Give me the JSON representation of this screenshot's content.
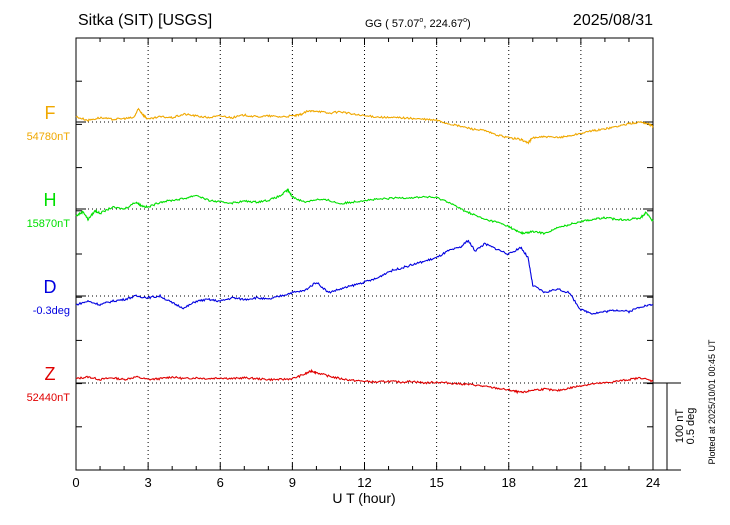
{
  "header": {
    "station": "Sitka (SIT)  [USGS]",
    "coord_prefix": "GG ( ",
    "coord_lat": "57.07",
    "coord_lon": "224.67",
    "coord_suffix": ")",
    "degree_mark": "o",
    "date": "2025/08/31"
  },
  "scale": {
    "nt_label": "100 nT",
    "deg_label": "0.5 deg"
  },
  "plotted_note": "Plotted at 2025/10/01 00:45 UT",
  "chart_data": {
    "type": "line",
    "title": "Sitka (SIT)  [USGS]",
    "xlabel": "U T (hour)",
    "ylabel": "",
    "xlim": [
      0,
      24
    ],
    "xticks": [
      "0",
      "3",
      "6",
      "9",
      "12",
      "15",
      "18",
      "21",
      "24"
    ],
    "grid": true,
    "legend": "left",
    "nt_per_division": 100,
    "deg_per_division": 0.5,
    "series": [
      {
        "name": "F",
        "baseline": "54780nT",
        "color": "#f0a800",
        "unit": "nT",
        "offset": 3,
        "points": [
          [
            0,
            6
          ],
          [
            0.5,
            2
          ],
          [
            1,
            5
          ],
          [
            1.5,
            3
          ],
          [
            2,
            4
          ],
          [
            2.4,
            5
          ],
          [
            2.6,
            15
          ],
          [
            2.8,
            8
          ],
          [
            3,
            3
          ],
          [
            3.5,
            6
          ],
          [
            4,
            5
          ],
          [
            4.5,
            9
          ],
          [
            5,
            7
          ],
          [
            5.5,
            5
          ],
          [
            6,
            7
          ],
          [
            6.5,
            5
          ],
          [
            7,
            8
          ],
          [
            7.5,
            6
          ],
          [
            8,
            7
          ],
          [
            8.5,
            6
          ],
          [
            9,
            7
          ],
          [
            9.3,
            8
          ],
          [
            9.6,
            12
          ],
          [
            10,
            13
          ],
          [
            10.5,
            10
          ],
          [
            11,
            12
          ],
          [
            11.5,
            9
          ],
          [
            12,
            7
          ],
          [
            12.5,
            6
          ],
          [
            13,
            5
          ],
          [
            13.5,
            5
          ],
          [
            14,
            4
          ],
          [
            14.5,
            3
          ],
          [
            15,
            2
          ],
          [
            15.5,
            -2
          ],
          [
            16,
            -5
          ],
          [
            16.5,
            -8
          ],
          [
            17,
            -10
          ],
          [
            17.5,
            -15
          ],
          [
            18,
            -18
          ],
          [
            18.5,
            -20
          ],
          [
            18.8,
            -24
          ],
          [
            19,
            -18
          ],
          [
            19.5,
            -17
          ],
          [
            20,
            -18
          ],
          [
            20.5,
            -16
          ],
          [
            21,
            -13
          ],
          [
            21.5,
            -10
          ],
          [
            22,
            -8
          ],
          [
            22.5,
            -5
          ],
          [
            23,
            -2
          ],
          [
            23.5,
            0
          ],
          [
            23.8,
            -2
          ],
          [
            24,
            -5
          ]
        ]
      },
      {
        "name": "H",
        "baseline": "15870nT",
        "color": "#00e000",
        "unit": "nT",
        "offset": 2,
        "points": [
          [
            0,
            -8
          ],
          [
            0.3,
            -3
          ],
          [
            0.5,
            -12
          ],
          [
            0.8,
            -2
          ],
          [
            1,
            -5
          ],
          [
            1.5,
            2
          ],
          [
            2,
            0
          ],
          [
            2.5,
            8
          ],
          [
            2.7,
            4
          ],
          [
            3,
            2
          ],
          [
            3.5,
            8
          ],
          [
            4,
            10
          ],
          [
            4.5,
            12
          ],
          [
            5,
            16
          ],
          [
            5.5,
            10
          ],
          [
            6,
            8
          ],
          [
            6.5,
            7
          ],
          [
            7,
            9
          ],
          [
            7.5,
            8
          ],
          [
            8,
            10
          ],
          [
            8.5,
            15
          ],
          [
            8.8,
            22
          ],
          [
            9,
            14
          ],
          [
            9.5,
            8
          ],
          [
            10,
            11
          ],
          [
            10.5,
            10
          ],
          [
            11,
            6
          ],
          [
            11.5,
            8
          ],
          [
            12,
            10
          ],
          [
            12.5,
            11
          ],
          [
            13,
            12
          ],
          [
            13.5,
            13
          ],
          [
            14,
            13
          ],
          [
            14.5,
            14
          ],
          [
            15,
            13
          ],
          [
            15.5,
            8
          ],
          [
            16,
            0
          ],
          [
            16.5,
            -6
          ],
          [
            17,
            -12
          ],
          [
            17.5,
            -15
          ],
          [
            18,
            -20
          ],
          [
            18.3,
            -25
          ],
          [
            18.6,
            -28
          ],
          [
            19,
            -26
          ],
          [
            19.5,
            -28
          ],
          [
            20,
            -22
          ],
          [
            20.5,
            -18
          ],
          [
            21,
            -14
          ],
          [
            21.5,
            -12
          ],
          [
            22,
            -10
          ],
          [
            22.5,
            -12
          ],
          [
            23,
            -12
          ],
          [
            23.5,
            -10
          ],
          [
            23.7,
            -4
          ],
          [
            24,
            -14
          ]
        ]
      },
      {
        "name": "D",
        "baseline": "-0.3deg",
        "color": "#0000e0",
        "unit": "deg",
        "offset": 1,
        "points": [
          [
            0,
            -0.05
          ],
          [
            0.5,
            -0.03
          ],
          [
            1,
            -0.05
          ],
          [
            1.5,
            -0.03
          ],
          [
            2,
            -0.02
          ],
          [
            2.5,
            0
          ],
          [
            3,
            -0.01
          ],
          [
            3.5,
            0
          ],
          [
            4,
            -0.04
          ],
          [
            4.5,
            -0.07
          ],
          [
            5,
            -0.03
          ],
          [
            5.5,
            -0.02
          ],
          [
            6,
            -0.03
          ],
          [
            6.5,
            -0.01
          ],
          [
            7,
            -0.02
          ],
          [
            7.5,
            -0.01
          ],
          [
            8,
            -0.02
          ],
          [
            8.5,
            0
          ],
          [
            9,
            0.02
          ],
          [
            9.5,
            0.03
          ],
          [
            10,
            0.08
          ],
          [
            10.5,
            0.02
          ],
          [
            11,
            0.04
          ],
          [
            11.5,
            0.06
          ],
          [
            12,
            0.08
          ],
          [
            12.5,
            0.1
          ],
          [
            13,
            0.14
          ],
          [
            13.5,
            0.16
          ],
          [
            14,
            0.18
          ],
          [
            14.5,
            0.2
          ],
          [
            15,
            0.22
          ],
          [
            15.5,
            0.26
          ],
          [
            16,
            0.28
          ],
          [
            16.3,
            0.32
          ],
          [
            16.6,
            0.26
          ],
          [
            17,
            0.3
          ],
          [
            17.5,
            0.27
          ],
          [
            18,
            0.24
          ],
          [
            18.5,
            0.28
          ],
          [
            18.8,
            0.22
          ],
          [
            19,
            0.06
          ],
          [
            19.5,
            0.02
          ],
          [
            20,
            0.04
          ],
          [
            20.5,
            0.02
          ],
          [
            21,
            -0.08
          ],
          [
            21.5,
            -0.1
          ],
          [
            22,
            -0.09
          ],
          [
            22.5,
            -0.08
          ],
          [
            23,
            -0.09
          ],
          [
            23.5,
            -0.06
          ],
          [
            24,
            -0.05
          ]
        ]
      },
      {
        "name": "Z",
        "baseline": "52440nT",
        "color": "#e00000",
        "unit": "nT",
        "offset": 0,
        "points": [
          [
            0,
            5
          ],
          [
            0.5,
            7
          ],
          [
            1,
            4
          ],
          [
            1.5,
            6
          ],
          [
            2,
            4
          ],
          [
            2.5,
            7
          ],
          [
            3,
            4
          ],
          [
            3.5,
            5
          ],
          [
            4,
            7
          ],
          [
            4.5,
            5
          ],
          [
            5,
            6
          ],
          [
            5.5,
            5
          ],
          [
            6,
            6
          ],
          [
            6.5,
            5
          ],
          [
            7,
            6
          ],
          [
            7.5,
            5
          ],
          [
            8,
            4
          ],
          [
            8.5,
            4
          ],
          [
            9,
            5
          ],
          [
            9.5,
            10
          ],
          [
            9.8,
            14
          ],
          [
            10,
            12
          ],
          [
            10.5,
            8
          ],
          [
            11,
            5
          ],
          [
            11.5,
            3
          ],
          [
            12,
            2
          ],
          [
            12.5,
            1
          ],
          [
            13,
            2
          ],
          [
            13.5,
            1
          ],
          [
            14,
            2
          ],
          [
            14.5,
            0
          ],
          [
            15,
            1
          ],
          [
            15.5,
            0
          ],
          [
            16,
            -1
          ],
          [
            16.5,
            -2
          ],
          [
            17,
            -4
          ],
          [
            17.5,
            -6
          ],
          [
            18,
            -8
          ],
          [
            18.3,
            -10
          ],
          [
            18.6,
            -11
          ],
          [
            19,
            -8
          ],
          [
            19.5,
            -7
          ],
          [
            20,
            -9
          ],
          [
            20.5,
            -6
          ],
          [
            21,
            -3
          ],
          [
            21.5,
            -1
          ],
          [
            22,
            0
          ],
          [
            22.5,
            2
          ],
          [
            23,
            4
          ],
          [
            23.5,
            6
          ],
          [
            24,
            2
          ]
        ]
      }
    ]
  }
}
